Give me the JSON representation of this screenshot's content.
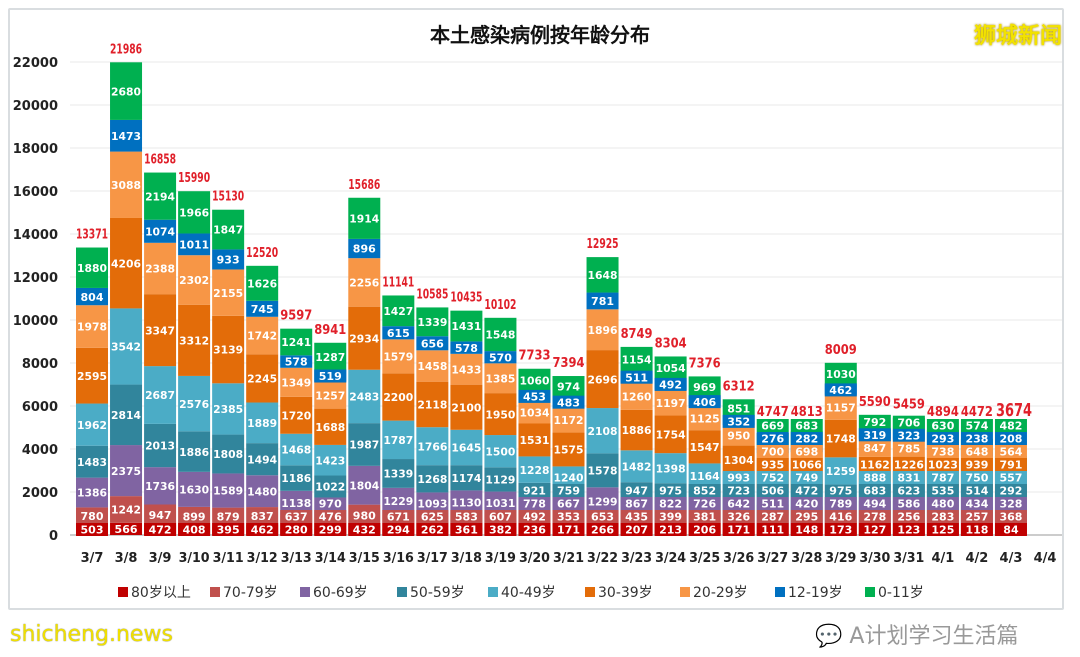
{
  "chart_data": {
    "type": "bar",
    "stacked": true,
    "title": "本土感染病例按年龄分布",
    "categories": [
      "3/7",
      "3/8",
      "3/9",
      "3/10",
      "3/11",
      "3/12",
      "3/13",
      "3/14",
      "3/15",
      "3/16",
      "3/17",
      "3/18",
      "3/19",
      "3/20",
      "3/21",
      "3/22",
      "3/23",
      "3/24",
      "3/25",
      "3/26",
      "3/27",
      "3/28",
      "3/29",
      "3/30",
      "3/31",
      "4/1",
      "4/2",
      "4/3",
      "4/4"
    ],
    "ylim": [
      0,
      22000
    ],
    "yticks": [
      0,
      2000,
      4000,
      6000,
      8000,
      10000,
      12000,
      14000,
      16000,
      18000,
      20000,
      22000
    ],
    "grid": true,
    "legend_position": "bottom",
    "series": [
      {
        "name": "80岁以上",
        "color": "#c00000",
        "values": [
          503,
          566,
          472,
          408,
          395,
          462,
          280,
          299,
          432,
          294,
          262,
          361,
          382,
          236,
          171,
          266,
          207,
          213,
          206,
          171,
          111,
          148,
          173,
          127,
          123,
          125,
          118,
          84,
          null
        ]
      },
      {
        "name": "70-79岁",
        "color": "#c0504d",
        "values": [
          780,
          1242,
          947,
          899,
          879,
          837,
          637,
          476,
          980,
          671,
          625,
          583,
          607,
          492,
          353,
          653,
          435,
          399,
          381,
          326,
          287,
          295,
          416,
          278,
          256,
          283,
          257,
          368,
          null
        ]
      },
      {
        "name": "60-69岁",
        "color": "#8064a2",
        "values": [
          1386,
          2375,
          1736,
          1630,
          1589,
          1480,
          1138,
          970,
          1804,
          1229,
          1093,
          1130,
          1031,
          778,
          667,
          1299,
          867,
          822,
          726,
          642,
          511,
          420,
          789,
          494,
          586,
          480,
          434,
          328,
          null
        ]
      },
      {
        "name": "50-59岁",
        "color": "#31859c",
        "values": [
          1483,
          2814,
          2013,
          1886,
          1808,
          1494,
          1186,
          1022,
          1987,
          1339,
          1268,
          1174,
          1129,
          921,
          759,
          1578,
          947,
          975,
          852,
          723,
          506,
          472,
          975,
          683,
          623,
          535,
          514,
          292,
          null
        ]
      },
      {
        "name": "40-49岁",
        "color": "#4bacc6",
        "values": [
          1962,
          3542,
          2687,
          2576,
          2385,
          1889,
          1468,
          1423,
          2483,
          1787,
          1766,
          1645,
          1500,
          1228,
          1240,
          2108,
          1482,
          1398,
          1164,
          993,
          752,
          749,
          1259,
          888,
          831,
          787,
          750,
          557,
          null
        ]
      },
      {
        "name": "30-39岁",
        "color": "#e36c09",
        "values": [
          2595,
          4206,
          3347,
          3312,
          3139,
          2245,
          1720,
          1688,
          2934,
          2200,
          2118,
          2100,
          1950,
          1531,
          1575,
          2696,
          1886,
          1754,
          1547,
          1304,
          935,
          1066,
          1748,
          1162,
          1226,
          1023,
          939,
          791,
          null
        ]
      },
      {
        "name": "20-29岁",
        "color": "#f79646",
        "values": [
          1978,
          3088,
          2388,
          2302,
          2155,
          1742,
          1349,
          1257,
          2256,
          1579,
          1458,
          1433,
          1385,
          1034,
          1172,
          1896,
          1260,
          1197,
          1125,
          950,
          700,
          698,
          1157,
          847,
          785,
          738,
          648,
          564,
          null
        ]
      },
      {
        "name": "12-19岁",
        "color": "#0070c0",
        "values": [
          804,
          1473,
          1074,
          1011,
          933,
          745,
          578,
          519,
          896,
          615,
          656,
          578,
          570,
          453,
          483,
          781,
          511,
          492,
          406,
          352,
          276,
          282,
          462,
          319,
          323,
          293,
          238,
          208,
          null
        ]
      },
      {
        "name": "0-11岁",
        "color": "#00b050",
        "values": [
          1880,
          2680,
          2194,
          1966,
          1847,
          1626,
          1241,
          1287,
          1914,
          1427,
          1339,
          1431,
          1548,
          1060,
          974,
          1648,
          1154,
          1054,
          969,
          851,
          669,
          683,
          1030,
          792,
          706,
          630,
          574,
          482,
          null
        ]
      }
    ],
    "totals": [
      13371,
      21986,
      16858,
      15990,
      15130,
      12520,
      9597,
      8941,
      15686,
      11141,
      10585,
      10435,
      10102,
      7733,
      7394,
      12925,
      8749,
      8304,
      7376,
      6312,
      4747,
      4813,
      8009,
      5590,
      5459,
      4894,
      4472,
      3674,
      null
    ],
    "total_label_color": "#e0202a"
  },
  "watermarks": {
    "top_right": "狮城新闻",
    "bottom_left": "shicheng.news",
    "wechat": "A计划学习生活篇"
  }
}
